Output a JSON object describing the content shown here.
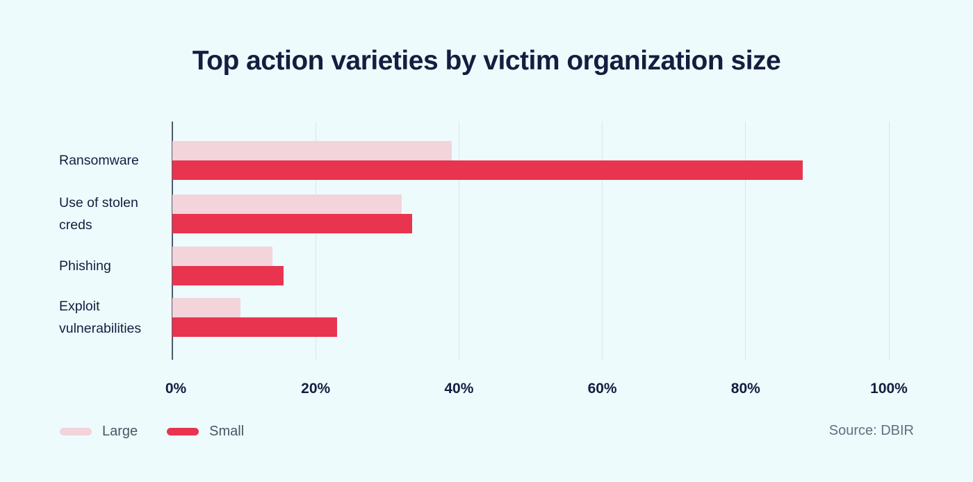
{
  "chart": {
    "title": "Top action varieties by victim organization size",
    "source": "Source: DBIR",
    "legend": [
      {
        "label": "Large",
        "color": "#f3d4da"
      },
      {
        "label": "Small",
        "color": "#e8344f"
      }
    ]
  },
  "chart_data": {
    "type": "bar",
    "orientation": "horizontal",
    "title": "Top action varieties by victim organization size",
    "categories": [
      "Ransomware",
      "Use of stolen creds",
      "Phishing",
      "Exploit vulnerabilities"
    ],
    "series": [
      {
        "name": "Large",
        "color": "#f3d4da",
        "values": [
          39,
          32,
          14,
          9.5
        ]
      },
      {
        "name": "Small",
        "color": "#e8344f",
        "values": [
          88,
          33.5,
          15.5,
          23
        ]
      }
    ],
    "xlabel": "",
    "ylabel": "",
    "xlim": [
      0,
      100
    ],
    "xticks": [
      0,
      20,
      40,
      60,
      80,
      100
    ],
    "xtick_labels": [
      "0%",
      "20%",
      "40%",
      "60%",
      "80%",
      "100%"
    ],
    "grid": true,
    "legend_position": "bottom-left",
    "source": "Source: DBIR"
  }
}
